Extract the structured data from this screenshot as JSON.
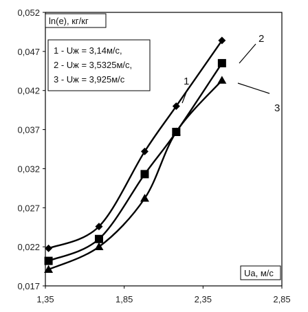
{
  "chart_data": {
    "type": "line",
    "ylabel": "ln(e), кг/кг",
    "xlabel": "Ua, м/с",
    "xlim": [
      1.35,
      2.85
    ],
    "ylim": [
      0.017,
      0.052
    ],
    "x_ticks": [
      "1,35",
      "1,85",
      "2,35",
      "2,85"
    ],
    "y_ticks": [
      "0,017",
      "0,022",
      "0,027",
      "0,032",
      "0,037",
      "0,042",
      "0,047",
      "0,052"
    ],
    "legend": [
      "1 - Uж = 3,14м/с,",
      "2 - Uж = 3,5325м/с,",
      "3 - Uж = 3,925м/с"
    ],
    "legend_position": "top-left",
    "grid": false,
    "series": [
      {
        "name": "1",
        "marker": "diamond",
        "x": [
          1.37,
          1.69,
          1.98,
          2.18,
          2.47
        ],
        "y": [
          0.0218,
          0.0246,
          0.0342,
          0.04,
          0.0484
        ]
      },
      {
        "name": "2",
        "marker": "square",
        "x": [
          1.37,
          1.69,
          1.98,
          2.18,
          2.47
        ],
        "y": [
          0.0202,
          0.023,
          0.0313,
          0.0367,
          0.0455
        ]
      },
      {
        "name": "3",
        "marker": "triangle",
        "x": [
          1.37,
          1.69,
          1.98,
          2.18,
          2.47
        ],
        "y": [
          0.0191,
          0.022,
          0.0282,
          0.0367,
          0.0433
        ]
      }
    ],
    "series_labels": [
      "1",
      "2",
      "3"
    ],
    "colors": {
      "line": "#000000",
      "marker": "#000000",
      "axis": "#000000"
    }
  }
}
